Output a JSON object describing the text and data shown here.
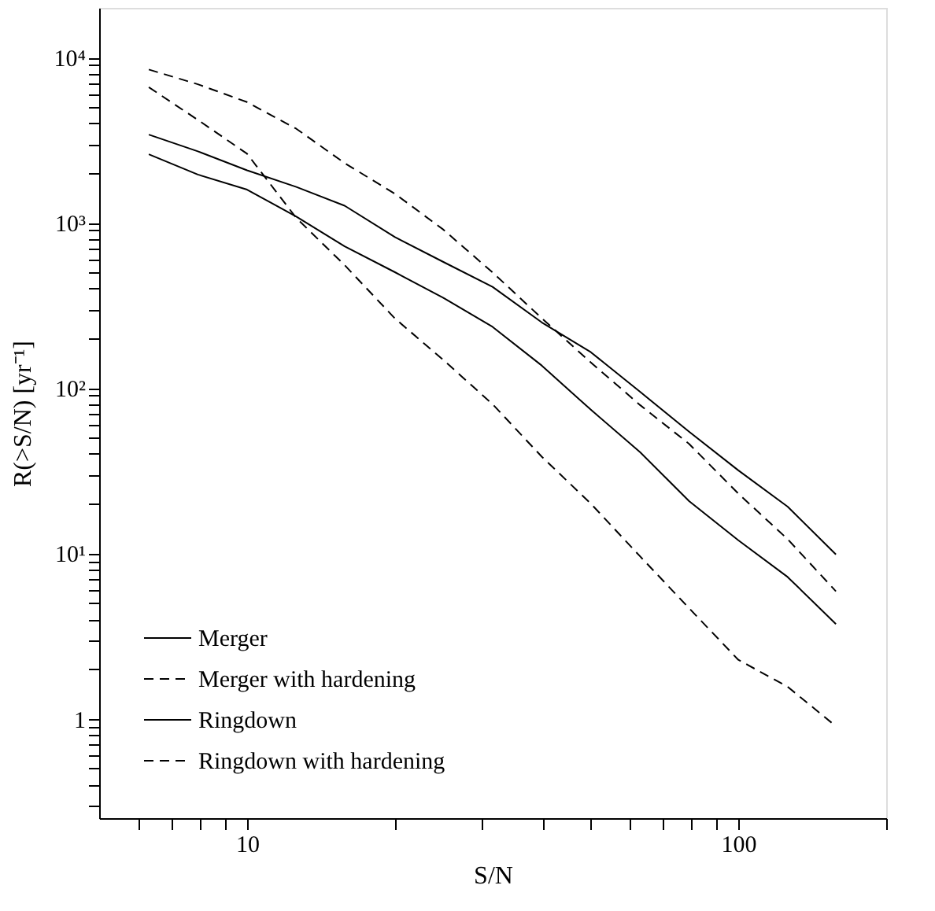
{
  "chart_data": {
    "type": "line",
    "xlabel": "S/N",
    "ylabel": "R(>S/N) [yr⁻¹]",
    "log": "xy",
    "grid": false,
    "legend": "bottom left",
    "marker": "none",
    "x": [
      6.31,
      7.94,
      10,
      12.6,
      15.8,
      20,
      25.1,
      31.6,
      39.8,
      50.1,
      63.1,
      79.4,
      100,
      126,
      158
    ],
    "xlim": [
      5,
      200
    ],
    "ylim": [
      0.25,
      20000
    ],
    "xticks": [
      {
        "value": 6,
        "label": null
      },
      {
        "value": 7,
        "label": null
      },
      {
        "value": 8,
        "label": null
      },
      {
        "value": 9,
        "label": null
      },
      10,
      {
        "value": 20,
        "label": null
      },
      {
        "value": 30,
        "label": null
      },
      {
        "value": 40,
        "label": null
      },
      {
        "value": 50,
        "label": null
      },
      {
        "value": 60,
        "label": null
      },
      {
        "value": 70,
        "label": null
      },
      {
        "value": 80,
        "label": null
      },
      {
        "value": 90,
        "label": null
      },
      100,
      {
        "value": 200,
        "label": null
      }
    ],
    "yticks": [
      {
        "value": 0.3,
        "label": null
      },
      {
        "value": 0.4,
        "label": null
      },
      {
        "value": 0.5,
        "label": null
      },
      {
        "value": 0.6,
        "label": null
      },
      {
        "value": 0.7,
        "label": null
      },
      {
        "value": 0.8,
        "label": null
      },
      {
        "value": 0.9,
        "label": null
      },
      1,
      {
        "value": 2,
        "label": null
      },
      {
        "value": 3,
        "label": null
      },
      {
        "value": 4,
        "label": null
      },
      {
        "value": 5,
        "label": null
      },
      {
        "value": 6,
        "label": null
      },
      {
        "value": 7,
        "label": null
      },
      {
        "value": 8,
        "label": null
      },
      {
        "value": 9,
        "label": null
      },
      {
        "value": 10,
        "label": "10¹"
      },
      {
        "value": 20,
        "label": null
      },
      {
        "value": 30,
        "label": null
      },
      {
        "value": 40,
        "label": null
      },
      {
        "value": 50,
        "label": null
      },
      {
        "value": 60,
        "label": null
      },
      {
        "value": 70,
        "label": null
      },
      {
        "value": 80,
        "label": null
      },
      {
        "value": 90,
        "label": null
      },
      {
        "value": 100,
        "label": "10²"
      },
      {
        "value": 200,
        "label": null
      },
      {
        "value": 300,
        "label": null
      },
      {
        "value": 400,
        "label": null
      },
      {
        "value": 500,
        "label": null
      },
      {
        "value": 600,
        "label": null
      },
      {
        "value": 700,
        "label": null
      },
      {
        "value": 800,
        "label": null
      },
      {
        "value": 900,
        "label": null
      },
      {
        "value": 1000,
        "label": "10³"
      },
      {
        "value": 2000,
        "label": null
      },
      {
        "value": 3000,
        "label": null
      },
      {
        "value": 4000,
        "label": null
      },
      {
        "value": 5000,
        "label": null
      },
      {
        "value": 6000,
        "label": null
      },
      {
        "value": 7000,
        "label": null
      },
      {
        "value": 8000,
        "label": null
      },
      {
        "value": 9000,
        "label": null
      },
      {
        "value": 10000,
        "label": "10⁴"
      }
    ],
    "series": [
      {
        "name": "Merger",
        "color": "#000000",
        "line_style": "solid",
        "values": [
          3420,
          2710,
          2080,
          1650,
          1270,
          820,
          580,
          410,
          250,
          165,
          95,
          54.5,
          31.8,
          19.2,
          9.85
        ]
      },
      {
        "name": "Merger with hardening",
        "color": "#000000",
        "line_style": "dashed",
        "values": [
          8470,
          6900,
          5380,
          3710,
          2300,
          1500,
          910,
          502,
          265,
          143,
          79,
          46,
          23,
          12.2,
          5.9
        ]
      },
      {
        "name": "Ringdown",
        "color": "#000000",
        "line_style": "solid",
        "values": [
          2600,
          1960,
          1590,
          1090,
          722,
          503,
          352,
          235,
          137,
          74,
          41,
          20.7,
          12,
          7.2,
          3.74
        ]
      },
      {
        "name": "Ringdown with hardening",
        "color": "#000000",
        "line_style": "dashed",
        "values": [
          6620,
          4200,
          2620,
          1070,
          555,
          264,
          148,
          80,
          38.5,
          20,
          9.6,
          4.66,
          2.27,
          1.56,
          0.9
        ]
      }
    ]
  }
}
